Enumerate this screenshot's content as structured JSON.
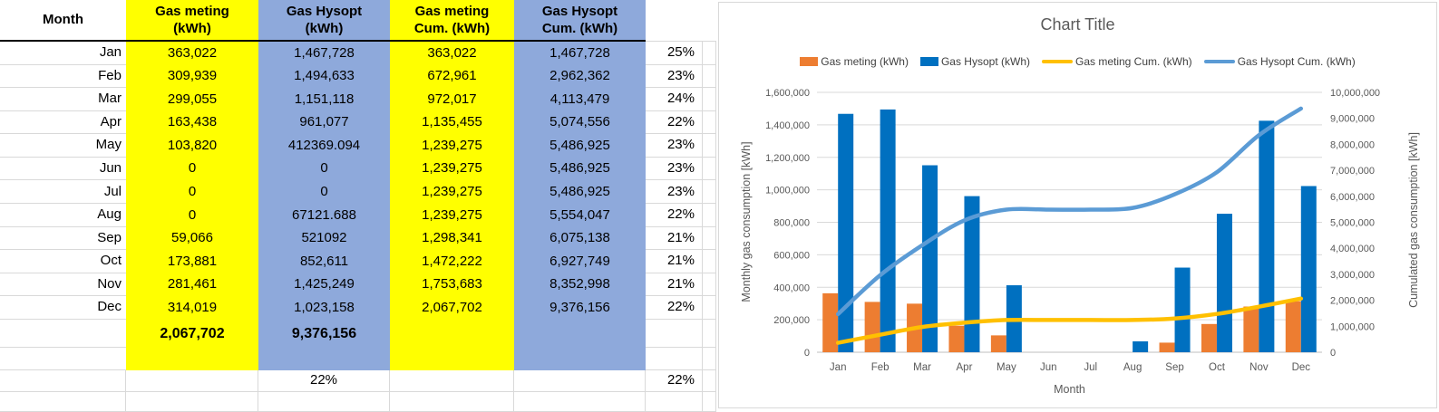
{
  "table": {
    "headers": [
      "Month",
      "Gas meting\n(kWh)",
      "Gas Hysopt\n(kWh)",
      "Gas meting\nCum. (kWh)",
      "Gas Hysopt\nCum. (kWh)"
    ],
    "rows": [
      {
        "month": "Jan",
        "meting": "363,022",
        "hysopt": "1,467,728",
        "meting_cum": "363,022",
        "hysopt_cum": "1,467,728",
        "pct": "25%"
      },
      {
        "month": "Feb",
        "meting": "309,939",
        "hysopt": "1,494,633",
        "meting_cum": "672,961",
        "hysopt_cum": "2,962,362",
        "pct": "23%"
      },
      {
        "month": "Mar",
        "meting": "299,055",
        "hysopt": "1,151,118",
        "meting_cum": "972,017",
        "hysopt_cum": "4,113,479",
        "pct": "24%"
      },
      {
        "month": "Apr",
        "meting": "163,438",
        "hysopt": "961,077",
        "meting_cum": "1,135,455",
        "hysopt_cum": "5,074,556",
        "pct": "22%"
      },
      {
        "month": "May",
        "meting": "103,820",
        "hysopt": "412369.094",
        "meting_cum": "1,239,275",
        "hysopt_cum": "5,486,925",
        "pct": "23%"
      },
      {
        "month": "Jun",
        "meting": "0",
        "hysopt": "0",
        "meting_cum": "1,239,275",
        "hysopt_cum": "5,486,925",
        "pct": "23%"
      },
      {
        "month": "Jul",
        "meting": "0",
        "hysopt": "0",
        "meting_cum": "1,239,275",
        "hysopt_cum": "5,486,925",
        "pct": "23%"
      },
      {
        "month": "Aug",
        "meting": "0",
        "hysopt": "67121.688",
        "meting_cum": "1,239,275",
        "hysopt_cum": "5,554,047",
        "pct": "22%"
      },
      {
        "month": "Sep",
        "meting": "59,066",
        "hysopt": "521092",
        "meting_cum": "1,298,341",
        "hysopt_cum": "6,075,138",
        "pct": "21%"
      },
      {
        "month": "Oct",
        "meting": "173,881",
        "hysopt": "852,611",
        "meting_cum": "1,472,222",
        "hysopt_cum": "6,927,749",
        "pct": "21%"
      },
      {
        "month": "Nov",
        "meting": "281,461",
        "hysopt": "1,425,249",
        "meting_cum": "1,753,683",
        "hysopt_cum": "8,352,998",
        "pct": "21%"
      },
      {
        "month": "Dec",
        "meting": "314,019",
        "hysopt": "1,023,158",
        "meting_cum": "2,067,702",
        "hysopt_cum": "9,376,156",
        "pct": "22%"
      }
    ],
    "total_row": {
      "meting": "2,067,702",
      "hysopt": "9,376,156"
    },
    "summary_row": {
      "hysopt_pct": "22%",
      "pct": "22%"
    },
    "colors": {
      "yellow": "#FFFF00",
      "blue": "#8EA9DB"
    }
  },
  "chart": {
    "title": "Chart Title",
    "left_axis_title": "Monthly gas consumption [kWh]",
    "right_axis_title": "Cumulated gas consumption [kWh]",
    "x_axis_title": "Month",
    "legend": [
      {
        "label": "Gas meting (kWh)",
        "color": "#ED7D31",
        "swatch": "bar"
      },
      {
        "label": "Gas Hysopt (kWh)",
        "color": "#0070C0",
        "swatch": "bar"
      },
      {
        "label": "Gas meting Cum. (kWh)",
        "color": "#FFC000",
        "swatch": "line"
      },
      {
        "label": "Gas Hysopt Cum. (kWh)",
        "color": "#5B9BD5",
        "swatch": "line"
      }
    ]
  },
  "chart_data": {
    "type": "combo",
    "title": "Chart Title",
    "xlabel": "Month",
    "ylabel_left": "Monthly gas consumption [kWh]",
    "ylabel_right": "Cumulated gas consumption [kWh]",
    "categories": [
      "Jan",
      "Feb",
      "Mar",
      "Apr",
      "May",
      "Jun",
      "Jul",
      "Aug",
      "Sep",
      "Oct",
      "Nov",
      "Dec"
    ],
    "series": [
      {
        "name": "Gas meting (kWh)",
        "type": "bar",
        "axis": "left",
        "color": "#ED7D31",
        "values": [
          363022,
          309939,
          299055,
          163438,
          103820,
          0,
          0,
          0,
          59066,
          173881,
          281461,
          314019
        ]
      },
      {
        "name": "Gas Hysopt (kWh)",
        "type": "bar",
        "axis": "left",
        "color": "#0070C0",
        "values": [
          1467728,
          1494633,
          1151118,
          961077,
          412369.094,
          0,
          0,
          67121.688,
          521092,
          852611,
          1425249,
          1023158
        ]
      },
      {
        "name": "Gas meting Cum. (kWh)",
        "type": "line",
        "axis": "right",
        "color": "#FFC000",
        "values": [
          363022,
          672961,
          972017,
          1135455,
          1239275,
          1239275,
          1239275,
          1239275,
          1298341,
          1472222,
          1753683,
          2067702
        ]
      },
      {
        "name": "Gas Hysopt Cum. (kWh)",
        "type": "line",
        "axis": "right",
        "color": "#5B9BD5",
        "values": [
          1467728,
          2962362,
          4113479,
          5074556,
          5486925,
          5486925,
          5486925,
          5554047,
          6075138,
          6927749,
          8352998,
          9376156
        ]
      }
    ],
    "y_left": {
      "min": 0,
      "max": 1600000,
      "step": 200000
    },
    "y_right": {
      "min": 0,
      "max": 10000000,
      "step": 1000000
    },
    "grid": true,
    "legend_position": "top"
  }
}
